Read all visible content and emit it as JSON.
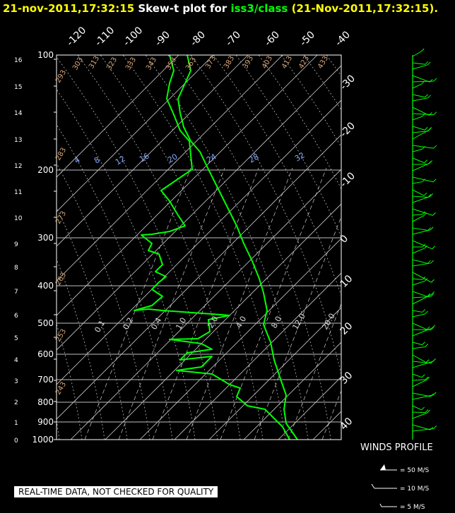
{
  "title": {
    "timestamp": "21-nov-2011,17:32:15",
    "middle": " Skew-t plot for ",
    "source": "iss3/class",
    "suffix": " (21-Nov-2011,17:32:15)."
  },
  "chart_data": {
    "type": "line",
    "title": "21-nov-2011,17:32:15  Skew-t plot for iss3/class (21-Nov-2011,17:32:15).",
    "pressure_labels": [
      "100",
      "200",
      "300",
      "400",
      "500",
      "600",
      "700",
      "800",
      "900",
      "1000"
    ],
    "height_labels": [
      "16",
      "15",
      "14",
      "13",
      "12",
      "11",
      "10",
      "9",
      "8",
      "7",
      "6",
      "5",
      "4",
      "3",
      "2",
      "1",
      "0"
    ],
    "top_temp_labels": [
      "-120",
      "-110",
      "-100",
      "-90",
      "-80",
      "-70",
      "-60",
      "-50",
      "-40"
    ],
    "right_temp_labels": [
      "-30",
      "-20",
      "-10",
      "0",
      "10",
      "20",
      "30",
      "40"
    ],
    "theta_labels": [
      "293",
      "303",
      "313",
      "323",
      "333",
      "343",
      "353",
      "363",
      "373",
      "383",
      "393",
      "403",
      "413",
      "423",
      "433",
      "283",
      "273",
      "263",
      "253",
      "243"
    ],
    "mixing_ratio_labels": [
      "4",
      "8",
      "12",
      "16",
      "20",
      "24",
      "28",
      "32"
    ],
    "moist_labels": [
      "0.1",
      "0.2",
      "0.4",
      "1.0",
      "2.0",
      "4.0",
      "8.0",
      "12.0",
      "20.0"
    ],
    "series": [
      {
        "name": "temperature",
        "color": "#00ff00"
      },
      {
        "name": "dewpoint",
        "color": "#00ff00"
      }
    ],
    "winds_label": "WINDS PROFILE",
    "wind_legend": [
      "= 50 M/S",
      "= 10 M/S",
      "= 5 M/S"
    ]
  },
  "footer": {
    "quality_note": "REAL-TIME DATA, NOT CHECKED FOR QUALITY"
  }
}
